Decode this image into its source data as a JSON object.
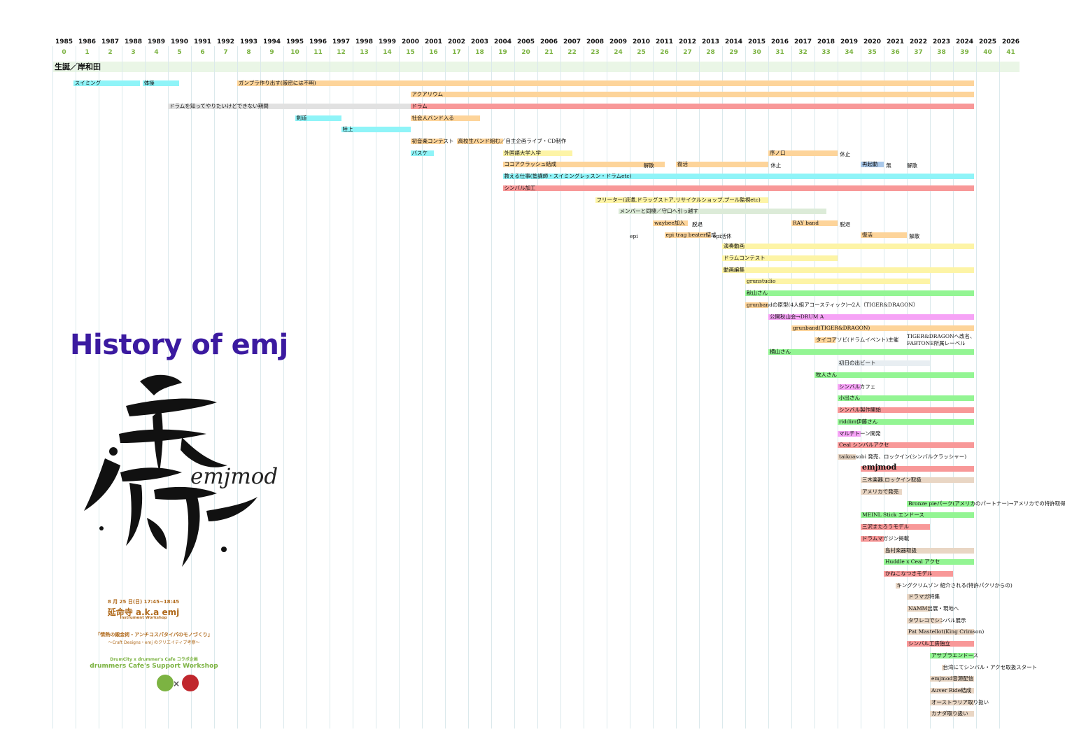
{
  "years": [
    "1985",
    "1986",
    "1987",
    "1988",
    "1989",
    "1990",
    "1991",
    "1992",
    "1993",
    "1994",
    "1995",
    "1996",
    "1997",
    "1998",
    "1999",
    "2000",
    "2001",
    "2002",
    "2003",
    "2004",
    "2005",
    "2006",
    "2007",
    "2008",
    "2009",
    "2010",
    "2011",
    "2012",
    "2013",
    "2014",
    "2015",
    "2016",
    "2017",
    "2018",
    "2019",
    "2020",
    "2021",
    "2022",
    "2023",
    "2024",
    "2025",
    "2026"
  ],
  "ages": [
    "0",
    "1",
    "2",
    "3",
    "4",
    "5",
    "6",
    "7",
    "8",
    "9",
    "10",
    "11",
    "12",
    "13",
    "14",
    "15",
    "16",
    "17",
    "18",
    "19",
    "20",
    "21",
    "22",
    "23",
    "24",
    "25",
    "26",
    "27",
    "28",
    "29",
    "30",
    "31",
    "32",
    "33",
    "34",
    "35",
    "36",
    "37",
    "38",
    "39",
    "40",
    "41"
  ],
  "birth_label": "生誕／岸和田",
  "colors": {
    "cyan": "#8ff4f8",
    "orange": "#fdd49a",
    "red": "#f89898",
    "gray": "#e1e1e1",
    "yellow": "#fdf4a6",
    "green": "#93f593",
    "pink": "#f6a3f6",
    "tan": "#e9d6c4",
    "blue": "#a9c8ea",
    "sage": "#dcebd8",
    "paleblue": "#e8eef2"
  },
  "events": [
    {
      "label": "スイミング",
      "color": "cyan",
      "start": 1985.9,
      "end": 1988.8,
      "row": 0
    },
    {
      "label": "体操",
      "color": "cyan",
      "start": 1988.9,
      "end": 1990.5,
      "row": 0
    },
    {
      "label": "ガンプラ作り出す(厳密には不明)",
      "color": "orange",
      "start": 1993.0,
      "end": 2024.9,
      "row": 0
    },
    {
      "label": "アクアリウム",
      "color": "orange",
      "start": 2000.5,
      "end": 2024.9,
      "row": 1
    },
    {
      "label": "ドラムを知ってやりたいけどできない期間",
      "color": "gray",
      "start": 1990.0,
      "end": 2000.5,
      "row": 2
    },
    {
      "label": "ドラム",
      "color": "red",
      "start": 2000.5,
      "end": 2024.9,
      "row": 2
    },
    {
      "label": "剣道",
      "color": "cyan",
      "start": 1995.5,
      "end": 1997.5,
      "row": 3
    },
    {
      "label": "社会人バンド入る",
      "color": "orange",
      "start": 2000.5,
      "end": 2003.5,
      "row": 3
    },
    {
      "label": "陸上",
      "color": "cyan",
      "start": 1997.5,
      "end": 2000.5,
      "row": 4
    },
    {
      "label": "初音楽コンテスト",
      "color": "orange",
      "start": 2000.5,
      "end": 2002.0,
      "row": 5
    },
    {
      "label": "高校生バンド組む／自主企画ライブ・CD制作",
      "color": "orange",
      "start": 2002.5,
      "end": 2004.5,
      "row": 5
    },
    {
      "label": "バスケ",
      "color": "cyan",
      "start": 2000.5,
      "end": 2001.5,
      "row": 6
    },
    {
      "label": "外国語大学入学",
      "color": "yellow",
      "start": 2004.5,
      "end": 2007.5,
      "row": 6
    },
    {
      "label": "序ノ口",
      "color": "orange",
      "start": 2016.0,
      "end": 2019.0,
      "row": 6
    },
    {
      "label": "ココアクラッシュ結成",
      "color": "orange",
      "start": 2004.5,
      "end": 2011.5,
      "row": 7
    },
    {
      "label": "復活",
      "color": "orange",
      "start": 2012.0,
      "end": 2016.0,
      "row": 7
    },
    {
      "label": "再起動",
      "color": "blue",
      "start": 2020.0,
      "end": 2021.0,
      "row": 7
    },
    {
      "label": "教える仕事(塾講師・スイミングレッスン・ドラムetc)",
      "color": "cyan",
      "start": 2004.5,
      "end": 2024.9,
      "row": 8
    },
    {
      "label": "シンバル加工",
      "color": "red",
      "start": 2004.5,
      "end": 2024.9,
      "row": 9
    },
    {
      "label": "フリーター(派遣,ドラッグストア,リサイクルショップ,プール監視etc)",
      "color": "yellow",
      "start": 2008.5,
      "end": 2016.0,
      "row": 10
    },
    {
      "label": "メンバーと同棲／守口へ引っ越す",
      "color": "sage",
      "start": 2009.5,
      "end": 2018.5,
      "row": 11
    },
    {
      "label": "waybee加入",
      "color": "orange",
      "start": 2011.0,
      "end": 2012.5,
      "row": 12
    },
    {
      "label": "RAY band",
      "color": "orange",
      "start": 2017.0,
      "end": 2019.0,
      "row": 12
    },
    {
      "label": "epi trag beater結成",
      "color": "orange",
      "start": 2011.5,
      "end": 2013.5,
      "row": 13
    },
    {
      "label": "復活",
      "color": "orange",
      "start": 2020.0,
      "end": 2022.0,
      "row": 13
    },
    {
      "label": "演奏動画",
      "color": "yellow",
      "start": 2014.0,
      "end": 2024.9,
      "row": 14
    },
    {
      "label": "ドラムコンテスト",
      "color": "yellow",
      "start": 2014.0,
      "end": 2019.0,
      "row": 15
    },
    {
      "label": "動画編集",
      "color": "yellow",
      "start": 2014.0,
      "end": 2024.9,
      "row": 16
    },
    {
      "label": "grunstudio",
      "color": "yellow",
      "start": 2015.0,
      "end": 2023.0,
      "row": 17
    },
    {
      "label": "秋山さん",
      "color": "green",
      "start": 2015.0,
      "end": 2024.9,
      "row": 18
    },
    {
      "label": "grunbandの原型(4人組アコースティック)→2人（TIGER&DRAGON）",
      "color": "orange",
      "start": 2015.0,
      "end": 2016.0,
      "row": 19
    },
    {
      "label": "公開秋山会→DRUM A",
      "color": "pink",
      "start": 2016.0,
      "end": 2024.9,
      "row": 20
    },
    {
      "label": "grunband(TIGER&DRAGON)",
      "color": "orange",
      "start": 2017.0,
      "end": 2024.9,
      "row": 21
    },
    {
      "label": "タイコアソビ(ドラムイベント)主催",
      "color": "orange",
      "start": 2018.0,
      "end": 2018.9,
      "row": 22
    },
    {
      "label": "横山さん",
      "color": "green",
      "start": 2016.0,
      "end": 2024.9,
      "row": 23
    },
    {
      "label": "初日の出ビート",
      "color": "paleblue",
      "start": 2019.0,
      "end": 2023.0,
      "row": 24
    },
    {
      "label": "牧人さん",
      "color": "green",
      "start": 2018.0,
      "end": 2024.9,
      "row": 25
    },
    {
      "label": "シンバルカフェ",
      "color": "pink",
      "start": 2019.0,
      "end": 2020.0,
      "row": 26
    },
    {
      "label": "小出さん",
      "color": "green",
      "start": 2019.0,
      "end": 2024.9,
      "row": 27
    },
    {
      "label": "シンバル製作開始",
      "color": "red",
      "start": 2019.0,
      "end": 2024.9,
      "row": 28
    },
    {
      "label": "riddim伊藤さん",
      "color": "green",
      "start": 2019.0,
      "end": 2024.9,
      "row": 29
    },
    {
      "label": "マルチトーン開発",
      "color": "pink",
      "start": 2019.0,
      "end": 2020.0,
      "row": 30
    },
    {
      "label": "Ceal シンバルアクセ",
      "color": "red",
      "start": 2019.0,
      "end": 2024.9,
      "row": 31
    },
    {
      "label": "taikoasobi 発売、ロックイン(シンバルクラッシャー)",
      "color": "tan",
      "start": 2019.0,
      "end": 2019.8,
      "row": 32
    },
    {
      "label": "emjmod",
      "color": "red",
      "start": 2020.0,
      "end": 2024.9,
      "row": 33,
      "big": true
    },
    {
      "label": "三木楽器,ロックイン取扱",
      "color": "tan",
      "start": 2020.0,
      "end": 2024.9,
      "row": 34
    },
    {
      "label": "アメリカで発売",
      "color": "tan",
      "start": 2020.0,
      "end": 2021.8,
      "row": 35
    },
    {
      "label": "Bronze pieパーク(アメリカのパートナー)→アメリカでの特許取得へ",
      "color": "green",
      "start": 2022.0,
      "end": 2024.9,
      "row": 36
    },
    {
      "label": "MEINL Stick エンドース",
      "color": "green",
      "start": 2020.0,
      "end": 2024.9,
      "row": 37
    },
    {
      "label": "三沢またろうモデル",
      "color": "red",
      "start": 2020.0,
      "end": 2023.0,
      "row": 38
    },
    {
      "label": "ドラムマガジン掲載",
      "color": "red",
      "start": 2020.0,
      "end": 2021.0,
      "row": 39
    },
    {
      "label": "島村楽器取扱",
      "color": "tan",
      "start": 2021.0,
      "end": 2024.9,
      "row": 40
    },
    {
      "label": "Huddle x Ceal アクセ",
      "color": "green",
      "start": 2021.0,
      "end": 2024.9,
      "row": 41
    },
    {
      "label": "かねこなつきモデル",
      "color": "red",
      "start": 2021.0,
      "end": 2024.0,
      "row": 42
    },
    {
      "label": "キングクリムゾン 紹介される(特許パクリからの)",
      "color": "tan",
      "start": 2021.5,
      "end": 2021.7,
      "row": 43
    },
    {
      "label": "ドラマガ特集",
      "color": "tan",
      "start": 2022.0,
      "end": 2023.0,
      "row": 44
    },
    {
      "label": "NAMM出展・現地へ",
      "color": "tan",
      "start": 2022.0,
      "end": 2023.0,
      "row": 45
    },
    {
      "label": "タワレコでシンバル展示",
      "color": "tan",
      "start": 2022.0,
      "end": 2023.5,
      "row": 46
    },
    {
      "label": "Pat Mastellot(King Crimson)",
      "color": "tan",
      "start": 2022.0,
      "end": 2024.9,
      "row": 47
    },
    {
      "label": "シンバル工房独立",
      "color": "red",
      "start": 2022.0,
      "end": 2024.9,
      "row": 48
    },
    {
      "label": "アサプラエンドース",
      "color": "green",
      "start": 2023.0,
      "end": 2024.9,
      "row": 49
    },
    {
      "label": "台湾にてシンバル・アクセ取扱スタート",
      "color": "tan",
      "start": 2023.5,
      "end": 2023.6,
      "row": 50
    },
    {
      "label": "emjmod音源配信",
      "color": "tan",
      "start": 2023.0,
      "end": 2024.9,
      "row": 51
    },
    {
      "label": "Auver Ride結成",
      "color": "tan",
      "start": 2023.0,
      "end": 2024.9,
      "row": 52
    },
    {
      "label": "オーストラリア取り扱い",
      "color": "tan",
      "start": 2023.0,
      "end": 2024.9,
      "row": 53
    },
    {
      "label": "カナダ取り扱い",
      "color": "tan",
      "start": 2023.0,
      "end": 2024.9,
      "row": 54
    }
  ],
  "notes": [
    {
      "label": "解散",
      "year": 2010.6,
      "row": 7
    },
    {
      "label": "休止",
      "year": 2016.1,
      "row": 7
    },
    {
      "label": "無",
      "year": 2021.1,
      "row": 7
    },
    {
      "label": "解散",
      "year": 2022.0,
      "row": 7
    },
    {
      "label": "休止",
      "year": 2019.1,
      "row": 6
    },
    {
      "label": "脱退",
      "year": 2012.7,
      "row": 12
    },
    {
      "label": "脱退",
      "year": 2019.1,
      "row": 12
    },
    {
      "label": "epi",
      "year": 2010.0,
      "row": 13
    },
    {
      "label": "epi活休",
      "year": 2013.6,
      "row": 13
    },
    {
      "label": "解散",
      "year": 2022.1,
      "row": 13
    },
    {
      "label": "TIGER&DRAGONへ改名、FABTONE所属レーベル",
      "year": 2022.0,
      "row": 22,
      "multi": true
    }
  ],
  "poster": {
    "title": "History of emj",
    "calligraphy": "延命寺",
    "brand": "emjmod",
    "date": "8 月 25 日(日) 17:45~18:45",
    "name": "延命寺 a.k.a emj",
    "subtitle": "Instrument Workshop",
    "theme": "「情熱の鍛金術・アンチコスパタイパのモノづくり」",
    "theme_sub": "〜Craft Designs・emj のクリエイティブ考察〜",
    "collab": "DrumCity x drummer's Cafe コラボ企画",
    "workshop": "drummers Cafe's Support Workshop",
    "logo_left": "drumcity-logo",
    "logo_right": "drummers-cafe-logo"
  }
}
